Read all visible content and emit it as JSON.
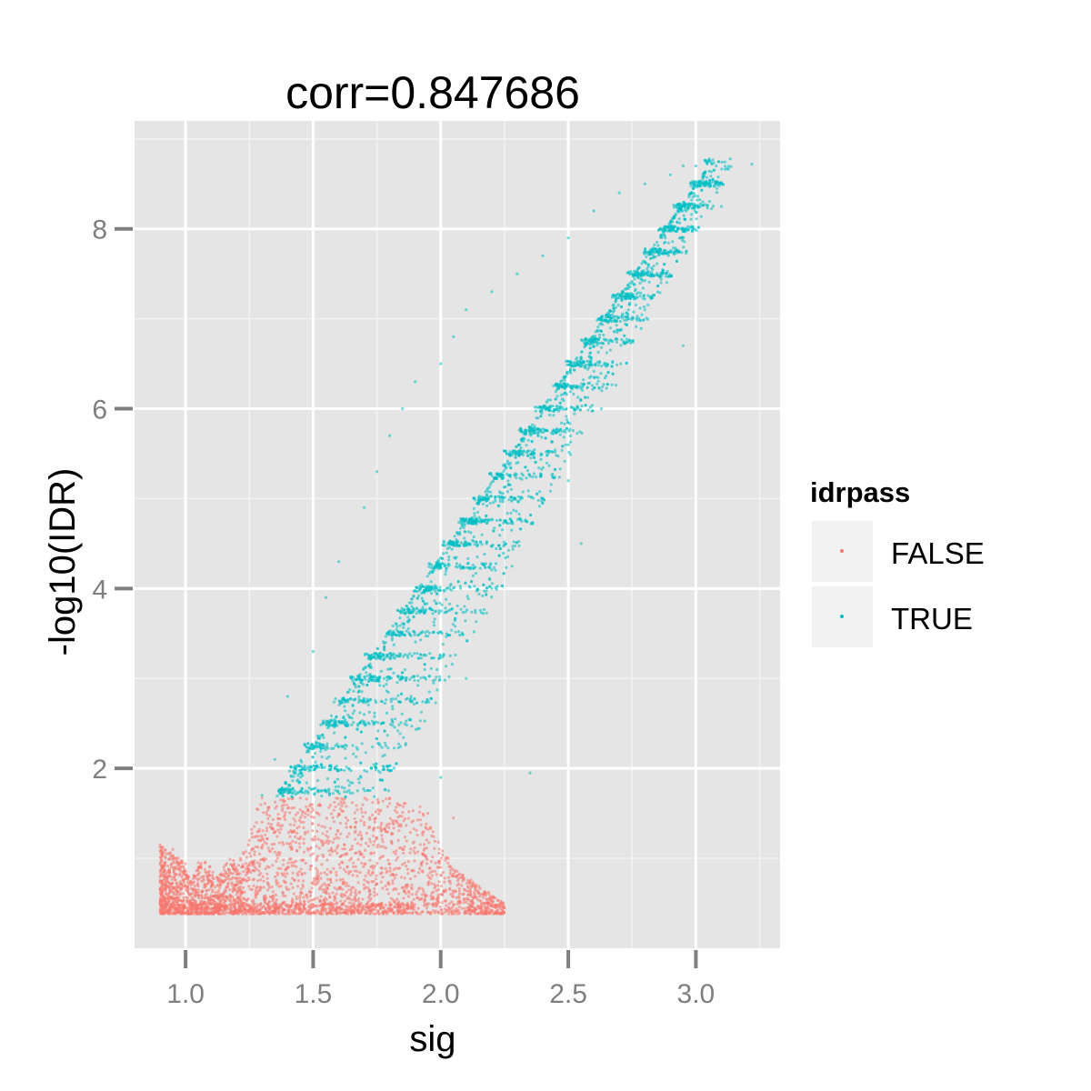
{
  "chart_data": {
    "type": "scatter",
    "title": "corr=0.847686",
    "xlabel": "sig",
    "ylabel": "-log10(IDR)",
    "xlim": [
      0.8,
      3.33
    ],
    "ylim": [
      0.0,
      9.2
    ],
    "x_ticks": [
      1.0,
      1.5,
      2.0,
      2.5,
      3.0
    ],
    "x_tick_labels": [
      "1.0",
      "1.5",
      "2.0",
      "2.5",
      "3.0"
    ],
    "y_ticks": [
      2,
      4,
      6,
      8
    ],
    "y_tick_labels": [
      "2",
      "4",
      "6",
      "8"
    ],
    "grid": true,
    "panel_background": "#e5e5e5",
    "threshold": 1.67,
    "legend": {
      "title": "idrpass",
      "position": "right",
      "entries": [
        {
          "label": "FALSE",
          "color": "#f8766d"
        },
        {
          "label": "TRUE",
          "color": "#00bfc4"
        }
      ]
    },
    "series": [
      {
        "name": "FALSE",
        "color": "#f8766d",
        "points": [
          [
            0.9,
            0.4
          ],
          [
            0.9,
            1.15
          ],
          [
            0.93,
            0.8
          ],
          [
            0.95,
            1.1
          ],
          [
            1.0,
            0.7
          ],
          [
            1.05,
            0.95
          ],
          [
            1.1,
            0.5
          ],
          [
            1.15,
            0.9
          ],
          [
            1.2,
            0.6
          ],
          [
            1.25,
            1.2
          ],
          [
            1.28,
            1.55
          ],
          [
            1.3,
            1.67
          ],
          [
            1.35,
            1.3
          ],
          [
            1.4,
            0.9
          ],
          [
            1.45,
            1.67
          ],
          [
            1.5,
            1.2
          ],
          [
            1.55,
            0.7
          ],
          [
            1.6,
            1.6
          ],
          [
            1.65,
            1.0
          ],
          [
            1.7,
            1.4
          ],
          [
            1.75,
            0.6
          ],
          [
            1.8,
            1.67
          ],
          [
            1.85,
            1.1
          ],
          [
            1.9,
            0.8
          ],
          [
            1.95,
            1.5
          ],
          [
            2.0,
            0.9
          ],
          [
            2.05,
            1.45
          ],
          [
            2.1,
            0.55
          ],
          [
            2.15,
            0.45
          ],
          [
            2.2,
            0.42
          ],
          [
            2.25,
            0.45
          ]
        ]
      },
      {
        "name": "TRUE",
        "color": "#00bfc4",
        "points": [
          [
            1.3,
            1.7
          ],
          [
            1.35,
            2.1
          ],
          [
            1.4,
            2.8
          ],
          [
            1.5,
            3.3
          ],
          [
            1.55,
            3.9
          ],
          [
            1.6,
            4.3
          ],
          [
            1.7,
            4.9
          ],
          [
            1.75,
            5.3
          ],
          [
            1.8,
            5.7
          ],
          [
            1.85,
            6.0
          ],
          [
            1.9,
            6.3
          ],
          [
            2.0,
            6.5
          ],
          [
            2.05,
            6.8
          ],
          [
            2.1,
            7.1
          ],
          [
            2.2,
            7.3
          ],
          [
            2.3,
            7.5
          ],
          [
            2.4,
            7.7
          ],
          [
            2.5,
            7.9
          ],
          [
            2.6,
            8.2
          ],
          [
            2.7,
            8.4
          ],
          [
            2.8,
            8.5
          ],
          [
            2.9,
            8.6
          ],
          [
            2.95,
            8.7
          ],
          [
            3.0,
            8.7
          ],
          [
            3.08,
            8.7
          ],
          [
            3.22,
            8.72
          ],
          [
            3.1,
            8.25
          ],
          [
            2.8,
            7.1
          ],
          [
            2.95,
            6.7
          ],
          [
            2.5,
            5.6
          ],
          [
            2.5,
            5.2
          ],
          [
            2.55,
            4.5
          ],
          [
            2.35,
            1.95
          ],
          [
            2.0,
            1.9
          ],
          [
            1.7,
            2.6
          ],
          [
            2.1,
            3.0
          ],
          [
            2.2,
            4.0
          ]
        ]
      }
    ]
  }
}
